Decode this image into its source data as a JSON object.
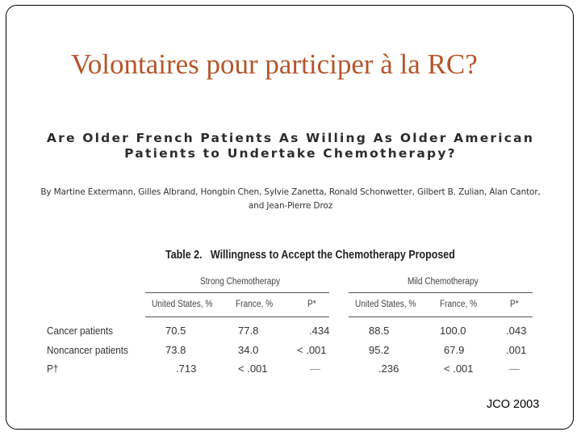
{
  "slide": {
    "title": "Volontaires pour participer à la RC?",
    "source": "JCO 2003"
  },
  "article": {
    "title_line1": "Are Older French Patients As Willing As Older American",
    "title_line2": "Patients to Undertake Chemotherapy?",
    "authors_line1": "By Martine Extermann, Gilles Albrand, Hongbin Chen, Sylvie Zanetta, Ronald Schonwetter, Gilbert B. Zulian, Alan Cantor,",
    "authors_line2": "and Jean-Pierre Droz"
  },
  "table": {
    "caption_number": "Table 2.",
    "caption_text": "Willingness to Accept the Chemotherapy Proposed",
    "groups": [
      "Strong Chemotherapy",
      "Mild Chemotherapy"
    ],
    "columns": [
      "United States, %",
      "France, %",
      "P*",
      "United States, %",
      "France, %",
      "P*"
    ],
    "rows": [
      {
        "label": "Cancer patients",
        "cells": [
          "70.5",
          "77.8",
          ".434",
          "88.5",
          "100.0",
          ".043"
        ]
      },
      {
        "label": "Noncancer patients",
        "cells": [
          "73.8",
          "34.0",
          "< .001",
          "95.2",
          "67.9",
          ".001"
        ]
      },
      {
        "label": "P†",
        "cells": [
          ".713",
          "< .001",
          "—",
          ".236",
          "< .001",
          "—"
        ]
      }
    ]
  }
}
